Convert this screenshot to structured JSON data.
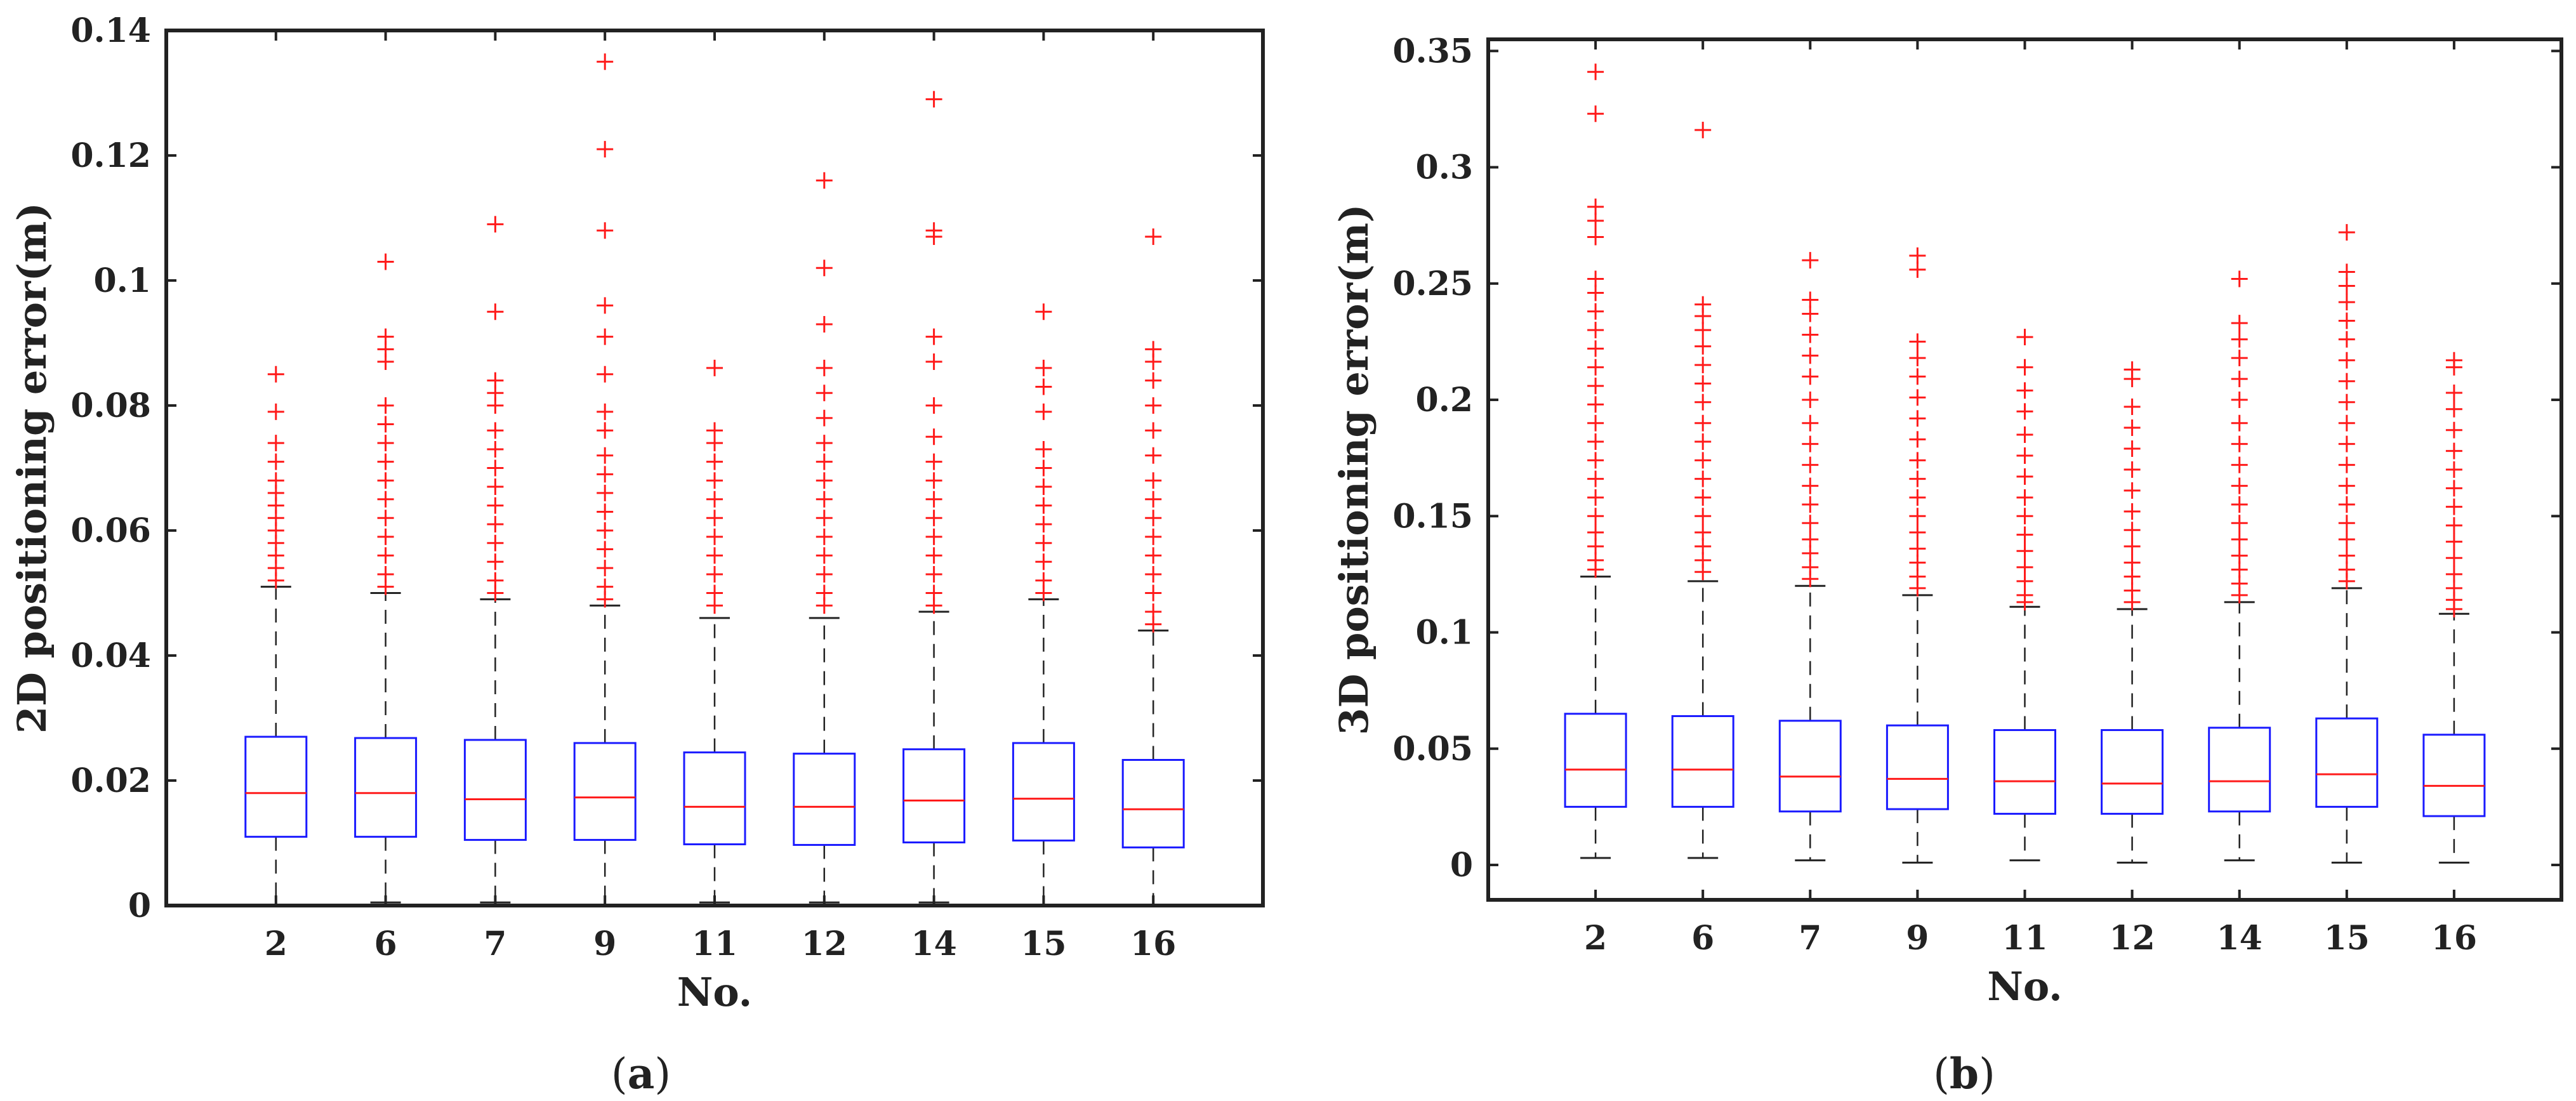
{
  "chart_data": [
    {
      "type": "box",
      "panel_label": "a",
      "xlabel": "No.",
      "ylabel": "2D positioning error(m)",
      "categories": [
        "2",
        "6",
        "7",
        "9",
        "11",
        "12",
        "14",
        "15",
        "16"
      ],
      "ylim": [
        0,
        0.14
      ],
      "yticks": [
        "0",
        "0.02",
        "0.04",
        "0.06",
        "0.08",
        "0.1",
        "0.12",
        "0.14"
      ],
      "ytick_values": [
        0,
        0.02,
        0.04,
        0.06,
        0.08,
        0.1,
        0.12,
        0.14
      ],
      "boxes": [
        {
          "min": 0.0,
          "q1": 0.011,
          "median": 0.018,
          "q3": 0.027,
          "whisker_high": 0.051,
          "outlier_max": 0.085,
          "outliers": [
            0.085,
            0.079,
            0.074,
            0.071,
            0.068,
            0.066,
            0.064,
            0.062,
            0.06,
            0.058,
            0.056,
            0.054,
            0.052
          ]
        },
        {
          "min": 0.0005,
          "q1": 0.011,
          "median": 0.018,
          "q3": 0.0268,
          "whisker_high": 0.05,
          "outlier_max": 0.103,
          "outliers": [
            0.103,
            0.091,
            0.089,
            0.087,
            0.08,
            0.077,
            0.074,
            0.071,
            0.068,
            0.065,
            0.062,
            0.059,
            0.056,
            0.053,
            0.051
          ]
        },
        {
          "min": 0.0005,
          "q1": 0.0105,
          "median": 0.017,
          "q3": 0.0265,
          "whisker_high": 0.049,
          "outlier_max": 0.109,
          "outliers": [
            0.109,
            0.095,
            0.084,
            0.082,
            0.08,
            0.076,
            0.073,
            0.07,
            0.067,
            0.064,
            0.061,
            0.058,
            0.055,
            0.052,
            0.05
          ]
        },
        {
          "min": 0.0,
          "q1": 0.0105,
          "median": 0.0173,
          "q3": 0.026,
          "whisker_high": 0.048,
          "outlier_max": 0.135,
          "outliers": [
            0.135,
            0.121,
            0.108,
            0.096,
            0.091,
            0.085,
            0.079,
            0.076,
            0.072,
            0.069,
            0.066,
            0.063,
            0.06,
            0.057,
            0.054,
            0.051,
            0.049
          ]
        },
        {
          "min": 0.0005,
          "q1": 0.0098,
          "median": 0.0158,
          "q3": 0.0245,
          "whisker_high": 0.046,
          "outlier_max": 0.086,
          "outliers": [
            0.086,
            0.076,
            0.074,
            0.071,
            0.068,
            0.065,
            0.062,
            0.059,
            0.056,
            0.053,
            0.05,
            0.048
          ]
        },
        {
          "min": 0.0005,
          "q1": 0.0097,
          "median": 0.0158,
          "q3": 0.0243,
          "whisker_high": 0.046,
          "outlier_max": 0.116,
          "outliers": [
            0.116,
            0.102,
            0.093,
            0.086,
            0.082,
            0.078,
            0.074,
            0.071,
            0.068,
            0.065,
            0.062,
            0.059,
            0.056,
            0.053,
            0.05,
            0.048
          ]
        },
        {
          "min": 0.0005,
          "q1": 0.0101,
          "median": 0.0168,
          "q3": 0.025,
          "whisker_high": 0.047,
          "outlier_max": 0.129,
          "outliers": [
            0.129,
            0.108,
            0.107,
            0.091,
            0.087,
            0.08,
            0.075,
            0.071,
            0.068,
            0.065,
            0.062,
            0.059,
            0.056,
            0.053,
            0.05,
            0.048
          ]
        },
        {
          "min": 0.0,
          "q1": 0.0104,
          "median": 0.0171,
          "q3": 0.026,
          "whisker_high": 0.049,
          "outlier_max": 0.095,
          "outliers": [
            0.095,
            0.086,
            0.083,
            0.079,
            0.073,
            0.07,
            0.067,
            0.064,
            0.061,
            0.058,
            0.055,
            0.052,
            0.05
          ]
        },
        {
          "min": 0.0,
          "q1": 0.0093,
          "median": 0.0154,
          "q3": 0.0233,
          "whisker_high": 0.044,
          "outlier_max": 0.107,
          "outliers": [
            0.107,
            0.089,
            0.087,
            0.084,
            0.08,
            0.076,
            0.072,
            0.068,
            0.065,
            0.062,
            0.059,
            0.056,
            0.053,
            0.05,
            0.047,
            0.045
          ]
        }
      ]
    },
    {
      "type": "box",
      "panel_label": "b",
      "xlabel": "No.",
      "ylabel": "3D positioning error(m)",
      "categories": [
        "2",
        "6",
        "7",
        "9",
        "11",
        "12",
        "14",
        "15",
        "16"
      ],
      "ylim": [
        -0.015,
        0.355
      ],
      "yticks": [
        "0",
        "0.05",
        "0.1",
        "0.15",
        "0.2",
        "0.25",
        "0.3",
        "0.35"
      ],
      "ytick_values": [
        0,
        0.05,
        0.1,
        0.15,
        0.2,
        0.25,
        0.3,
        0.35
      ],
      "boxes": [
        {
          "min": 0.003,
          "q1": 0.025,
          "median": 0.041,
          "q3": 0.065,
          "whisker_high": 0.124,
          "outlier_max": 0.341,
          "outliers": [
            0.341,
            0.323,
            0.283,
            0.277,
            0.27,
            0.252,
            0.246,
            0.238,
            0.23,
            0.222,
            0.214,
            0.206,
            0.198,
            0.19,
            0.182,
            0.174,
            0.166,
            0.158,
            0.15,
            0.143,
            0.137,
            0.131,
            0.127
          ]
        },
        {
          "min": 0.003,
          "q1": 0.025,
          "median": 0.041,
          "q3": 0.064,
          "whisker_high": 0.122,
          "outlier_max": 0.316,
          "outliers": [
            0.316,
            0.241,
            0.236,
            0.23,
            0.223,
            0.215,
            0.207,
            0.199,
            0.19,
            0.182,
            0.174,
            0.166,
            0.158,
            0.15,
            0.143,
            0.137,
            0.131,
            0.126
          ]
        },
        {
          "min": 0.002,
          "q1": 0.023,
          "median": 0.038,
          "q3": 0.062,
          "whisker_high": 0.12,
          "outlier_max": 0.26,
          "outliers": [
            0.26,
            0.243,
            0.237,
            0.228,
            0.219,
            0.21,
            0.2,
            0.19,
            0.181,
            0.172,
            0.163,
            0.155,
            0.147,
            0.14,
            0.134,
            0.128,
            0.123
          ]
        },
        {
          "min": 0.001,
          "q1": 0.024,
          "median": 0.037,
          "q3": 0.06,
          "whisker_high": 0.116,
          "outlier_max": 0.262,
          "outliers": [
            0.262,
            0.256,
            0.225,
            0.218,
            0.21,
            0.201,
            0.192,
            0.183,
            0.174,
            0.166,
            0.158,
            0.15,
            0.143,
            0.136,
            0.13,
            0.124,
            0.119
          ]
        },
        {
          "min": 0.002,
          "q1": 0.022,
          "median": 0.036,
          "q3": 0.058,
          "whisker_high": 0.111,
          "outlier_max": 0.227,
          "outliers": [
            0.227,
            0.214,
            0.204,
            0.195,
            0.185,
            0.176,
            0.167,
            0.158,
            0.15,
            0.142,
            0.135,
            0.128,
            0.122,
            0.116,
            0.113
          ]
        },
        {
          "min": 0.001,
          "q1": 0.022,
          "median": 0.035,
          "q3": 0.058,
          "whisker_high": 0.11,
          "outlier_max": 0.213,
          "outliers": [
            0.213,
            0.209,
            0.197,
            0.188,
            0.179,
            0.17,
            0.161,
            0.152,
            0.144,
            0.137,
            0.13,
            0.124,
            0.118,
            0.113
          ]
        },
        {
          "min": 0.002,
          "q1": 0.023,
          "median": 0.036,
          "q3": 0.059,
          "whisker_high": 0.113,
          "outlier_max": 0.252,
          "outliers": [
            0.252,
            0.233,
            0.226,
            0.218,
            0.209,
            0.2,
            0.19,
            0.181,
            0.172,
            0.163,
            0.155,
            0.147,
            0.14,
            0.133,
            0.127,
            0.121,
            0.116
          ]
        },
        {
          "min": 0.001,
          "q1": 0.025,
          "median": 0.039,
          "q3": 0.063,
          "whisker_high": 0.119,
          "outlier_max": 0.272,
          "outliers": [
            0.272,
            0.255,
            0.249,
            0.242,
            0.234,
            0.226,
            0.217,
            0.208,
            0.199,
            0.19,
            0.181,
            0.172,
            0.163,
            0.155,
            0.147,
            0.14,
            0.133,
            0.127,
            0.122
          ]
        },
        {
          "min": 0.001,
          "q1": 0.021,
          "median": 0.034,
          "q3": 0.056,
          "whisker_high": 0.108,
          "outlier_max": 0.217,
          "outliers": [
            0.217,
            0.214,
            0.203,
            0.196,
            0.187,
            0.178,
            0.17,
            0.162,
            0.154,
            0.146,
            0.139,
            0.132,
            0.125,
            0.119,
            0.114,
            0.11
          ]
        }
      ]
    }
  ]
}
